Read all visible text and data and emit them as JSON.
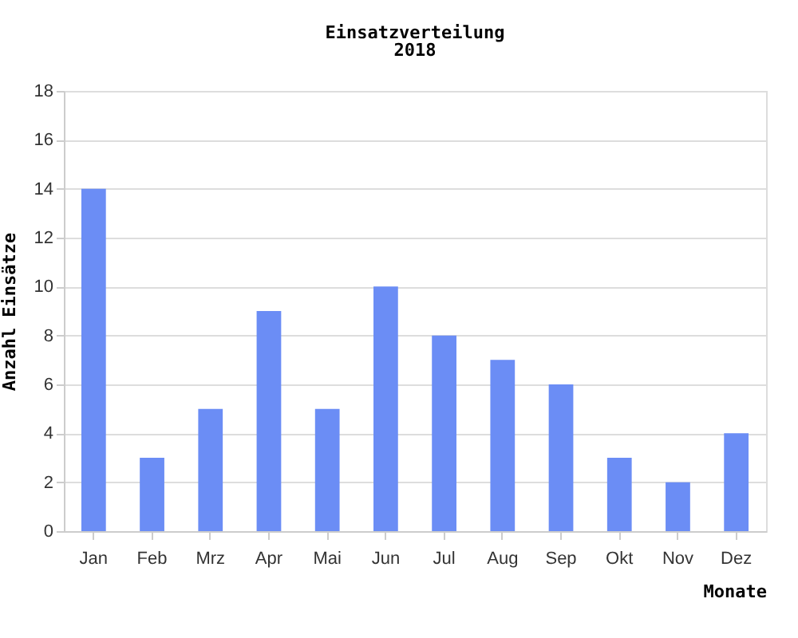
{
  "chart_data": {
    "type": "bar",
    "title": "Einsatzverteilung",
    "subtitle": "2018",
    "xlabel": "Monate",
    "ylabel": "Anzahl Einsätze",
    "categories": [
      "Jan",
      "Feb",
      "Mrz",
      "Apr",
      "Mai",
      "Jun",
      "Jul",
      "Aug",
      "Sep",
      "Okt",
      "Nov",
      "Dez"
    ],
    "values": [
      14,
      3,
      5,
      9,
      5,
      10,
      8,
      7,
      6,
      3,
      2,
      4
    ],
    "color": "#6b8df5",
    "ylim": [
      0,
      18
    ],
    "yticks": [
      0,
      2,
      4,
      6,
      8,
      10,
      12,
      14,
      16,
      18
    ],
    "grid": "y"
  }
}
